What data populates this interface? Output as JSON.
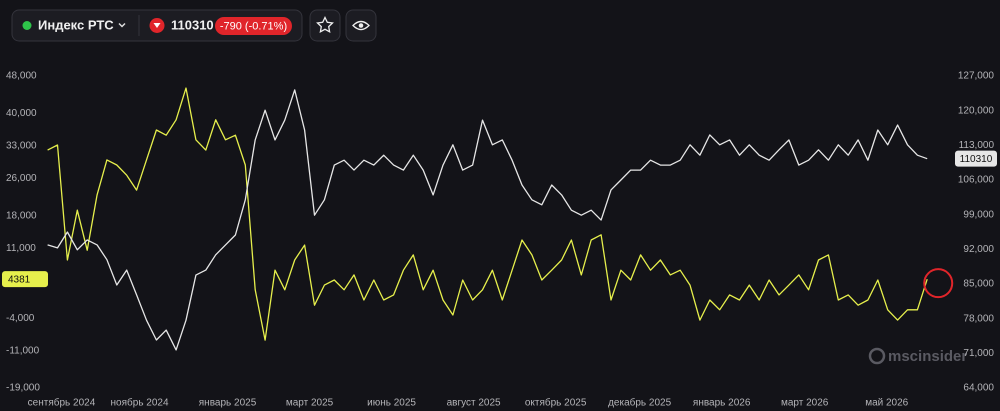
{
  "header": {
    "instrument": "Индекс РТС",
    "price": "110310",
    "change": "-790 (-0.71%)"
  },
  "watermark": "mscinsider",
  "chart_data": {
    "type": "line",
    "x": [
      0,
      1,
      2,
      3,
      4,
      5,
      6,
      7,
      8,
      9,
      10,
      11,
      12,
      13,
      14,
      15,
      16,
      17,
      18,
      19,
      20,
      21,
      22,
      23,
      24,
      25,
      26,
      27,
      28,
      29,
      30,
      31,
      32,
      33,
      34,
      35,
      36,
      37,
      38,
      39,
      40,
      41,
      42,
      43,
      44,
      45,
      46,
      47,
      48,
      49,
      50,
      51,
      52,
      53,
      54,
      55,
      56,
      57,
      58,
      59,
      60,
      61,
      62,
      63,
      64,
      65,
      66,
      67,
      68,
      69,
      70,
      71,
      72,
      73,
      74,
      75,
      76,
      77,
      78,
      79,
      80,
      81,
      82,
      83,
      84,
      85,
      86,
      87,
      88,
      89
    ],
    "xlim": [
      -3,
      91
    ],
    "xticks": [
      {
        "value": 1.4,
        "label": "сентябрь 2024"
      },
      {
        "value": 9.3,
        "label": "ноябрь 2024"
      },
      {
        "value": 18.2,
        "label": "январь 2025"
      },
      {
        "value": 26.5,
        "label": "март 2025"
      },
      {
        "value": 34.8,
        "label": "июнь 2025"
      },
      {
        "value": 43.1,
        "label": "август 2025"
      },
      {
        "value": 51.4,
        "label": "октябрь 2025"
      },
      {
        "value": 59.9,
        "label": "декабрь 2025"
      },
      {
        "value": 68.2,
        "label": "январь 2026"
      },
      {
        "value": 76.6,
        "label": "март 2026"
      },
      {
        "value": 84.9,
        "label": "май 2026"
      }
    ],
    "ylim": [
      -21560,
      51440
    ],
    "yticks": [
      {
        "value": 48000,
        "label": "48,000"
      },
      {
        "value": 40000,
        "label": "40,000"
      },
      {
        "value": 33000,
        "label": "33,000"
      },
      {
        "value": 26000,
        "label": "26,000"
      },
      {
        "value": 18000,
        "label": "18,000"
      },
      {
        "value": 11000,
        "label": "11,000"
      },
      {
        "value": -4000,
        "label": "-4,000"
      },
      {
        "value": -11000,
        "label": "-11,000"
      },
      {
        "value": -19000,
        "label": "-19,000"
      }
    ],
    "y2lim": [
      61580,
      130230
    ],
    "y2ticks": [
      {
        "value": 127000,
        "label": "127,000"
      },
      {
        "value": 120000,
        "label": "120,000"
      },
      {
        "value": 113000,
        "label": "113,000"
      },
      {
        "value": 106000,
        "label": "106,000"
      },
      {
        "value": 99000,
        "label": "99,000"
      },
      {
        "value": 92000,
        "label": "92,000"
      },
      {
        "value": 85000,
        "label": "85,000"
      },
      {
        "value": 78000,
        "label": "78,000"
      },
      {
        "value": 71000,
        "label": "71,000"
      },
      {
        "value": 64000,
        "label": "64,000"
      }
    ],
    "series": [
      {
        "color": "#e6ef4c",
        "values": [
          32100,
          33200,
          8500,
          19200,
          10600,
          22500,
          30000,
          28900,
          26700,
          23500,
          30000,
          36400,
          35300,
          38600,
          45400,
          34300,
          32100,
          38600,
          34300,
          35300,
          28900,
          2100,
          -8700,
          6300,
          2100,
          8500,
          11700,
          -1200,
          3100,
          4200,
          2100,
          5300,
          -100,
          4200,
          -100,
          1000,
          6300,
          9600,
          2100,
          6300,
          -100,
          -3300,
          4200,
          -100,
          2100,
          6300,
          -100,
          6300,
          12800,
          9600,
          4200,
          6300,
          8500,
          12800,
          5300,
          12800,
          13900,
          -100,
          6300,
          4200,
          9600,
          6300,
          8500,
          5300,
          6300,
          3100,
          -4400,
          -100,
          -2200,
          1000,
          -100,
          3100,
          -100,
          4200,
          1000,
          3100,
          5300,
          2100,
          8500,
          9600,
          -100,
          1000,
          -1200,
          -100,
          4200,
          -2200,
          -4400,
          -2200,
          -2200,
          4381
        ]
      },
      {
        "name": "Индекс РТС",
        "color": "#e6e6e6",
        "axis": "y2",
        "values": [
          92900,
          92300,
          95500,
          91900,
          93900,
          92900,
          89900,
          84800,
          87800,
          82800,
          77700,
          73700,
          75700,
          71700,
          77700,
          86800,
          87800,
          90900,
          92900,
          94900,
          102000,
          114100,
          120100,
          114100,
          118100,
          124200,
          116100,
          98900,
          102000,
          109000,
          110000,
          108000,
          110000,
          109000,
          111000,
          109000,
          108000,
          111000,
          108000,
          103000,
          109000,
          113100,
          108000,
          109000,
          118100,
          113100,
          114100,
          110000,
          105000,
          102000,
          101000,
          105000,
          103000,
          99900,
          98900,
          99900,
          97900,
          104000,
          106000,
          108000,
          108000,
          110000,
          109000,
          109000,
          110000,
          113100,
          111000,
          115100,
          113100,
          114100,
          111000,
          113100,
          111000,
          110000,
          112100,
          114100,
          109000,
          110000,
          112100,
          110000,
          113100,
          111000,
          114100,
          110000,
          116100,
          113100,
          117100,
          113100,
          111000,
          110310
        ]
      }
    ]
  }
}
